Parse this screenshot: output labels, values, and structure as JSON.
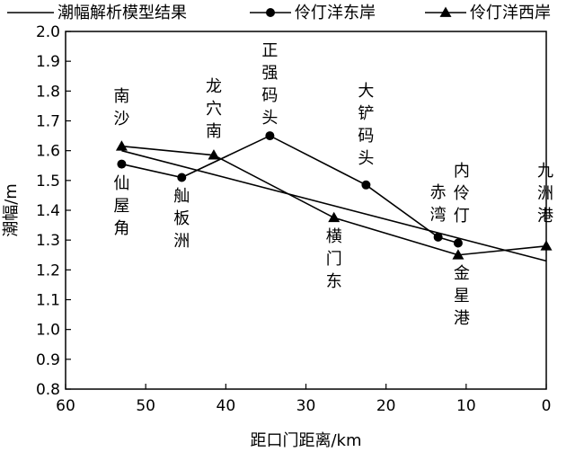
{
  "chart_data": {
    "type": "line",
    "title": "",
    "xlabel": "距口门距离/km",
    "ylabel": "潮幅/m",
    "xlim": [
      60,
      0
    ],
    "x_reversed": true,
    "ylim": [
      0.8,
      2.0
    ],
    "xticks": [
      60,
      50,
      40,
      30,
      20,
      10,
      0
    ],
    "yticks": [
      0.8,
      0.9,
      1.0,
      1.1,
      1.2,
      1.3,
      1.4,
      1.5,
      1.6,
      1.7,
      1.8,
      1.9,
      2.0
    ],
    "grid": false,
    "legend_position": "top",
    "series": [
      {
        "name": "潮幅解析模型结果",
        "marker": "none",
        "x": [
          53,
          0
        ],
        "y": [
          1.6,
          1.23
        ]
      },
      {
        "name": "伶仃洋东岸",
        "marker": "circle",
        "x": [
          53,
          45.5,
          34.5,
          22.5,
          13.5,
          11
        ],
        "y": [
          1.555,
          1.51,
          1.65,
          1.485,
          1.31,
          1.29
        ]
      },
      {
        "name": "伶仃洋西岸",
        "marker": "triangle",
        "x": [
          53,
          41.5,
          26.5,
          11,
          0
        ],
        "y": [
          1.615,
          1.585,
          1.375,
          1.25,
          1.28
        ]
      }
    ],
    "annotations": [
      {
        "text": "南沙",
        "x": 53,
        "y": 1.615
      },
      {
        "text": "仙屋角",
        "x": 53,
        "y": 1.555
      },
      {
        "text": "龙穴南",
        "x": 41.5,
        "y": 1.585
      },
      {
        "text": "舢板洲",
        "x": 45.5,
        "y": 1.51
      },
      {
        "text": "正强码头",
        "x": 34.5,
        "y": 1.65
      },
      {
        "text": "横门东",
        "x": 26.5,
        "y": 1.375
      },
      {
        "text": "大铲码头",
        "x": 22.5,
        "y": 1.485
      },
      {
        "text": "赤湾",
        "x": 13.5,
        "y": 1.31
      },
      {
        "text": "内伶仃",
        "x": 11,
        "y": 1.29
      },
      {
        "text": "金星港",
        "x": 11,
        "y": 1.25
      },
      {
        "text": "九洲港",
        "x": 0,
        "y": 1.28
      }
    ]
  }
}
